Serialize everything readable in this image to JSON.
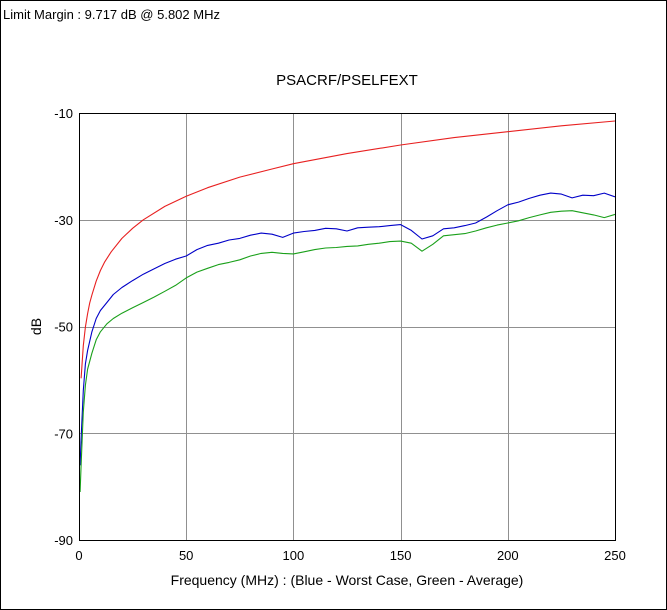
{
  "header": {
    "limit_margin": "Limit Margin : 9.717 dB @ 5.802 MHz"
  },
  "chart_data": {
    "type": "line",
    "title": "PSACRF/PSELFEXT",
    "xlabel": "Frequency (MHz) : (Blue - Worst Case, Green - Average)",
    "ylabel": "dB",
    "xlim": [
      0,
      250
    ],
    "ylim": [
      -90,
      -10
    ],
    "xticks": [
      0,
      50,
      100,
      150,
      200,
      250
    ],
    "yticks": [
      -10,
      -30,
      -50,
      -70,
      -90
    ],
    "xtick_labels": [
      "0",
      "50",
      "100",
      "150",
      "200",
      "250"
    ],
    "ytick_labels": [
      "-10",
      "-30",
      "-50",
      "-70",
      "-90"
    ],
    "grid": true,
    "colors": {
      "limit": "#e82020",
      "worst": "#0000c8",
      "average": "#1aa01a",
      "grid": "#909090",
      "axis": "#000000"
    },
    "series": [
      {
        "color": "limit",
        "x": [
          1,
          2,
          3,
          4,
          5,
          6,
          8,
          10,
          12,
          15,
          20,
          25,
          30,
          40,
          50,
          60,
          75,
          90,
          100,
          125,
          150,
          175,
          200,
          225,
          250
        ],
        "y": [
          -59.7,
          -53.6,
          -50.1,
          -47.6,
          -45.6,
          -44.1,
          -41.5,
          -39.5,
          -37.9,
          -36.0,
          -33.5,
          -31.6,
          -30.0,
          -27.5,
          -25.6,
          -24.0,
          -22.0,
          -20.5,
          -19.5,
          -17.6,
          -16.0,
          -14.6,
          -13.5,
          -12.4,
          -11.5
        ]
      },
      {
        "color": "worst",
        "x": [
          0.5,
          1,
          2,
          3,
          4,
          6,
          8,
          10,
          13,
          16,
          20,
          25,
          30,
          35,
          40,
          45,
          50,
          55,
          60,
          65,
          70,
          75,
          80,
          85,
          90,
          95,
          100,
          105,
          110,
          115,
          120,
          125,
          130,
          135,
          140,
          145,
          150,
          155,
          160,
          165,
          170,
          175,
          180,
          185,
          190,
          195,
          200,
          205,
          210,
          215,
          220,
          225,
          230,
          235,
          240,
          245,
          250
        ],
        "y": [
          -76,
          -71,
          -62,
          -57,
          -54.5,
          -51,
          -48.5,
          -47,
          -45.5,
          -44,
          -42.7,
          -41.4,
          -40.2,
          -39.2,
          -38.2,
          -37.4,
          -36.8,
          -35.6,
          -34.8,
          -34.4,
          -33.8,
          -33.5,
          -32.9,
          -32.5,
          -32.7,
          -33.3,
          -32.5,
          -32.2,
          -32.0,
          -31.6,
          -31.7,
          -32.1,
          -31.5,
          -31.4,
          -31.3,
          -31.1,
          -30.9,
          -32.0,
          -33.6,
          -33.0,
          -31.7,
          -31.5,
          -31.1,
          -30.6,
          -29.5,
          -28.3,
          -27.2,
          -26.7,
          -26.0,
          -25.4,
          -25.0,
          -25.2,
          -25.9,
          -25.4,
          -25.5,
          -25.0,
          -25.7
        ]
      },
      {
        "color": "average",
        "x": [
          0.5,
          1,
          2,
          3,
          4,
          6,
          8,
          10,
          13,
          16,
          20,
          25,
          30,
          35,
          40,
          45,
          50,
          55,
          60,
          65,
          70,
          75,
          80,
          85,
          90,
          95,
          100,
          105,
          110,
          115,
          120,
          125,
          130,
          135,
          140,
          145,
          150,
          155,
          160,
          165,
          170,
          175,
          180,
          185,
          190,
          195,
          200,
          205,
          210,
          215,
          220,
          225,
          230,
          235,
          240,
          245,
          250
        ],
        "y": [
          -81,
          -76,
          -66,
          -61,
          -58,
          -55,
          -52.5,
          -51,
          -49.5,
          -48.5,
          -47.5,
          -46.5,
          -45.5,
          -44.5,
          -43.4,
          -42.3,
          -40.9,
          -39.8,
          -39.1,
          -38.4,
          -38.0,
          -37.5,
          -36.8,
          -36.3,
          -36.1,
          -36.3,
          -36.4,
          -36.0,
          -35.6,
          -35.3,
          -35.2,
          -35.0,
          -34.9,
          -34.6,
          -34.4,
          -34.1,
          -34.0,
          -34.4,
          -35.9,
          -34.6,
          -33.0,
          -32.8,
          -32.6,
          -32.1,
          -31.5,
          -31.0,
          -30.6,
          -30.2,
          -29.6,
          -29.1,
          -28.6,
          -28.4,
          -28.3,
          -28.7,
          -29.1,
          -29.6,
          -29.0
        ]
      }
    ]
  }
}
